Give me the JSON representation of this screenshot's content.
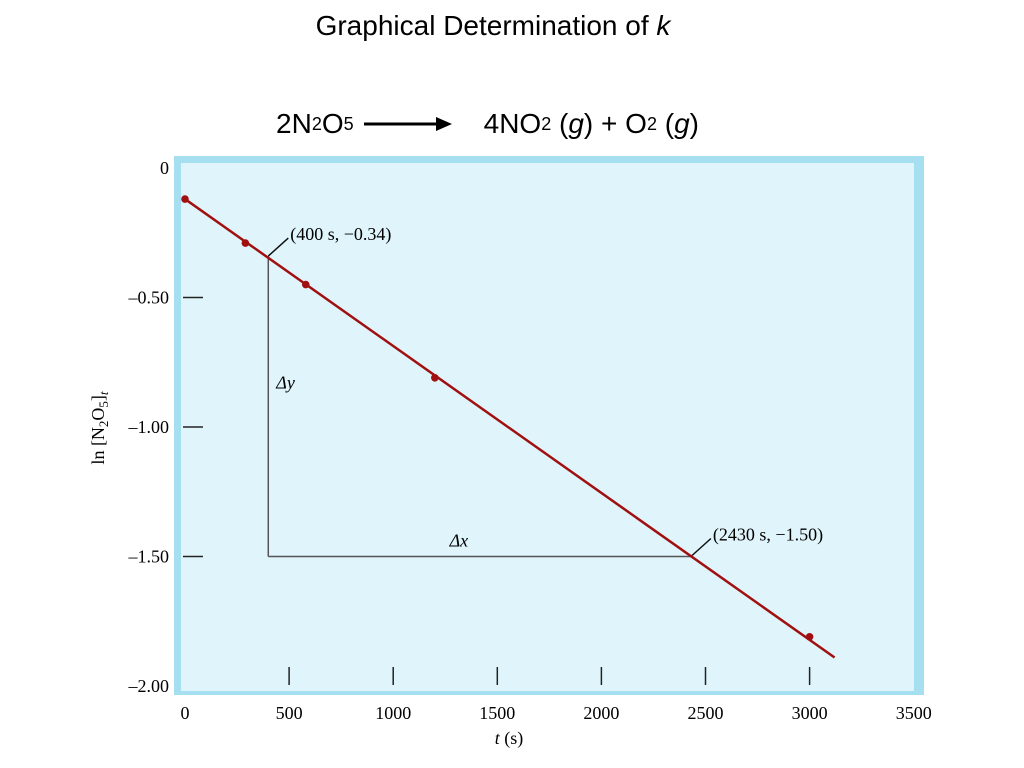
{
  "title": {
    "text": "Graphical Determination of",
    "variable": "k"
  },
  "reaction": {
    "reactant": {
      "coef": "2",
      "a": "N",
      "a_sub": "2",
      "b": "O",
      "b_sub": "5"
    },
    "product1": {
      "coef": "4",
      "a": "NO",
      "a_sub": "2",
      "state_open": "(",
      "state": "g",
      "state_close": ")"
    },
    "plus": "+",
    "product2": {
      "a": "O",
      "a_sub": "2",
      "state_open": "(",
      "state": "g",
      "state_close": ")"
    }
  },
  "colors": {
    "plot_fill": "#e0f5fb",
    "plot_border": "#a6dff0",
    "fit_line": "#a01010",
    "points": "#a01010",
    "construction": "#555555"
  },
  "chart_data": {
    "type": "scatter",
    "ylabel": {
      "prefix": "ln [N",
      "sub1": "2",
      "mid": "O",
      "sub2": "5",
      "close": "]",
      "subscript_t": "t"
    },
    "xlabel": {
      "var": "t",
      "unit": "(s)"
    },
    "xlim": [
      0,
      3500
    ],
    "ylim": [
      -2.0,
      0
    ],
    "x_ticks": [
      0,
      500,
      1000,
      1500,
      2000,
      2500,
      3000,
      3500
    ],
    "x_tick_labels": [
      "0",
      "500",
      "1000",
      "1500",
      "2000",
      "2500",
      "3000",
      "3500"
    ],
    "y_ticks": [
      0,
      -0.5,
      -1.0,
      -1.5,
      -2.0
    ],
    "y_tick_labels": [
      "0",
      "–0.50",
      "–1.00",
      "–1.50",
      "–2.00"
    ],
    "series": [
      {
        "points": [
          [
            0,
            -0.12
          ],
          [
            290,
            -0.29
          ],
          [
            580,
            -0.45
          ],
          [
            1200,
            -0.81
          ],
          [
            3000,
            -1.81
          ]
        ]
      }
    ],
    "fit_line": {
      "x": [
        0,
        3120
      ],
      "y": [
        -0.12,
        -1.89
      ]
    },
    "annotations": [
      {
        "x": 400,
        "y": -0.34,
        "text": "(400 s, −0.34)"
      },
      {
        "x": 2430,
        "y": -1.5,
        "text": "(2430 s, −1.50)"
      }
    ],
    "delta_y_label": "Δy",
    "delta_x_label": "Δx",
    "grid": false
  }
}
